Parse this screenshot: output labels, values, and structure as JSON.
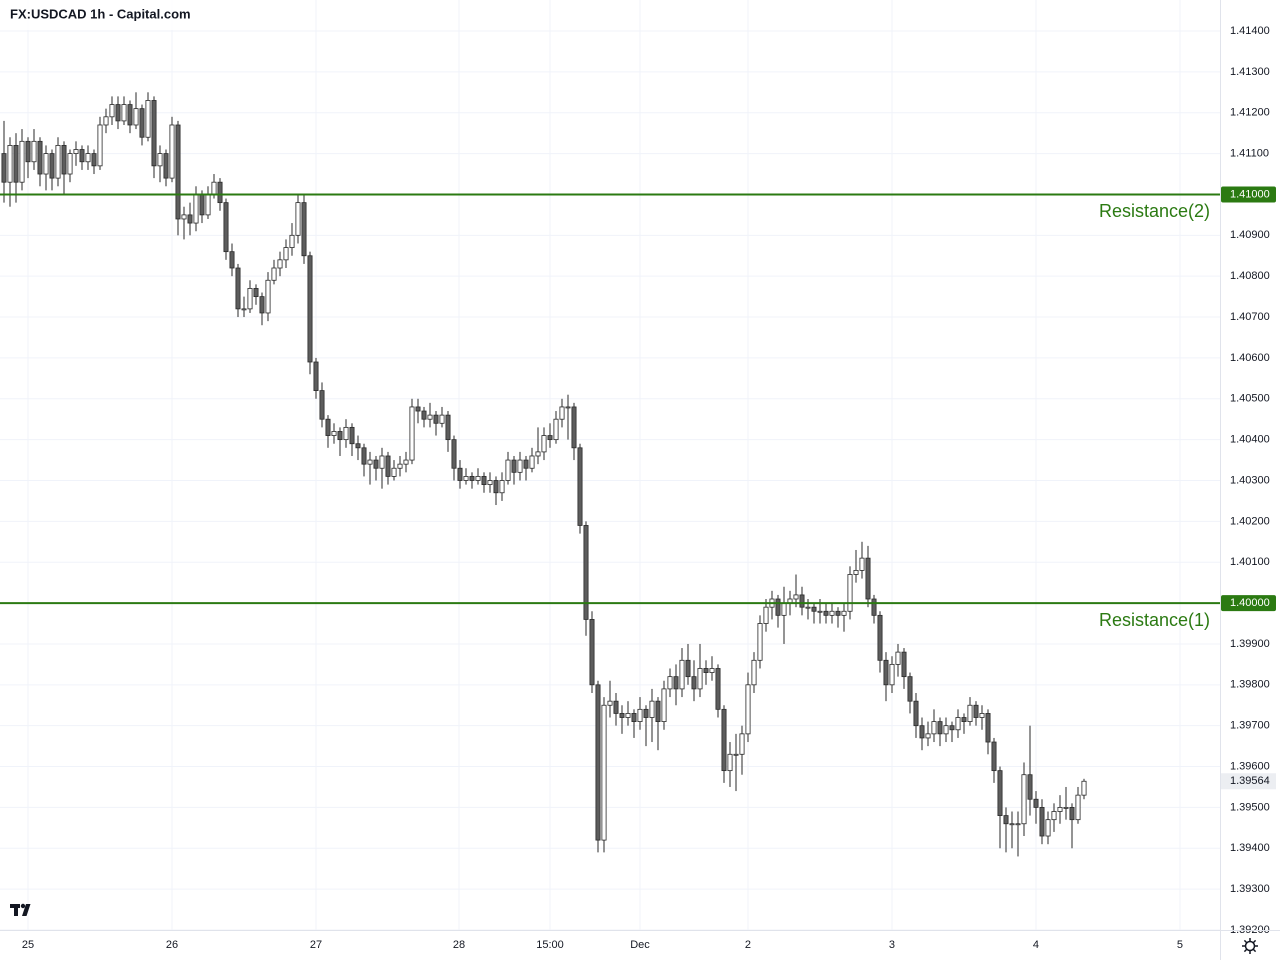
{
  "chart_data": {
    "type": "candlestick",
    "title": "FX:USDCAD 1h - Capital.com",
    "up_color": "#ffffff",
    "down_color": "#5d5d5d",
    "wick_color": "#2a2a2a",
    "level_color": "#2b7a12",
    "grid": true,
    "ylim": [
      1.392,
      1.414
    ],
    "yticks": [
      {
        "value": 1.392,
        "label": "1.39200"
      },
      {
        "value": 1.393,
        "label": "1.39300"
      },
      {
        "value": 1.394,
        "label": "1.39400"
      },
      {
        "value": 1.395,
        "label": "1.39500"
      },
      {
        "value": 1.396,
        "label": "1.39600"
      },
      {
        "value": 1.397,
        "label": "1.39700"
      },
      {
        "value": 1.398,
        "label": "1.39800"
      },
      {
        "value": 1.399,
        "label": "1.39900"
      },
      {
        "value": 1.4,
        "label": "1.40000"
      },
      {
        "value": 1.401,
        "label": "1.40100"
      },
      {
        "value": 1.402,
        "label": "1.40200"
      },
      {
        "value": 1.403,
        "label": "1.40300"
      },
      {
        "value": 1.404,
        "label": "1.40400"
      },
      {
        "value": 1.405,
        "label": "1.40500"
      },
      {
        "value": 1.406,
        "label": "1.40600"
      },
      {
        "value": 1.407,
        "label": "1.40700"
      },
      {
        "value": 1.408,
        "label": "1.40800"
      },
      {
        "value": 1.409,
        "label": "1.40900"
      },
      {
        "value": 1.41,
        "label": "1.41000"
      },
      {
        "value": 1.411,
        "label": "1.41100"
      },
      {
        "value": 1.412,
        "label": "1.41200"
      },
      {
        "value": 1.413,
        "label": "1.41300"
      },
      {
        "value": 1.414,
        "label": "1.41400"
      }
    ],
    "xlim": [
      -0.667,
      202.667
    ],
    "xticks": [
      {
        "value": 4,
        "label": "25"
      },
      {
        "value": 28,
        "label": "26"
      },
      {
        "value": 52,
        "label": "27"
      },
      {
        "value": 75.83,
        "label": "28"
      },
      {
        "value": 91,
        "label": "15:00"
      },
      {
        "value": 106,
        "label": "Dec"
      },
      {
        "value": 124,
        "label": "2"
      },
      {
        "value": 148,
        "label": "3"
      },
      {
        "value": 172,
        "label": "4"
      },
      {
        "value": 196,
        "label": "5"
      }
    ],
    "levels": [
      {
        "name": "Resistance(2)",
        "value": 1.41,
        "value_label": "1.41000"
      },
      {
        "name": "Resistance(1)",
        "value": 1.4,
        "value_label": "1.40000"
      }
    ],
    "ohlc": [
      [
        1.411,
        1.4118,
        1.4098,
        1.4103
      ],
      [
        1.4103,
        1.4114,
        1.4097,
        1.4112
      ],
      [
        1.4112,
        1.4115,
        1.4098,
        1.4103
      ],
      [
        1.4103,
        1.4116,
        1.4101,
        1.4113
      ],
      [
        1.4113,
        1.4114,
        1.4104,
        1.4108
      ],
      [
        1.4108,
        1.4116,
        1.4106,
        1.4113
      ],
      [
        1.4113,
        1.4114,
        1.4102,
        1.4105
      ],
      [
        1.4105,
        1.4112,
        1.4101,
        1.411
      ],
      [
        1.411,
        1.4111,
        1.4101,
        1.4104
      ],
      [
        1.4104,
        1.4114,
        1.4102,
        1.4112
      ],
      [
        1.4112,
        1.4113,
        1.41,
        1.4105
      ],
      [
        1.4105,
        1.4111,
        1.4103,
        1.411
      ],
      [
        1.411,
        1.4113,
        1.4107,
        1.4111
      ],
      [
        1.4111,
        1.4112,
        1.4106,
        1.4108
      ],
      [
        1.4108,
        1.4112,
        1.4106,
        1.411
      ],
      [
        1.411,
        1.4111,
        1.4105,
        1.4107
      ],
      [
        1.4107,
        1.4119,
        1.4106,
        1.4117
      ],
      [
        1.4117,
        1.4121,
        1.4115,
        1.4119
      ],
      [
        1.4119,
        1.4124,
        1.4117,
        1.4122
      ],
      [
        1.4122,
        1.4124,
        1.4116,
        1.4118
      ],
      [
        1.4118,
        1.4124,
        1.4117,
        1.4122
      ],
      [
        1.4122,
        1.4123,
        1.4115,
        1.4117
      ],
      [
        1.4117,
        1.4125,
        1.4116,
        1.4121
      ],
      [
        1.4121,
        1.4122,
        1.4112,
        1.4114
      ],
      [
        1.4114,
        1.4125,
        1.4113,
        1.4123
      ],
      [
        1.4123,
        1.4124,
        1.4104,
        1.4107
      ],
      [
        1.4107,
        1.4112,
        1.4103,
        1.411
      ],
      [
        1.411,
        1.4111,
        1.4102,
        1.4104
      ],
      [
        1.4104,
        1.4119,
        1.4103,
        1.4117
      ],
      [
        1.4117,
        1.4118,
        1.409,
        1.4094
      ],
      [
        1.4094,
        1.4097,
        1.4089,
        1.4095
      ],
      [
        1.4095,
        1.4098,
        1.409,
        1.4093
      ],
      [
        1.4093,
        1.4102,
        1.4091,
        1.41
      ],
      [
        1.41,
        1.4101,
        1.4093,
        1.4095
      ],
      [
        1.4095,
        1.4102,
        1.4094,
        1.41
      ],
      [
        1.41,
        1.4105,
        1.4099,
        1.4103
      ],
      [
        1.4103,
        1.4104,
        1.4096,
        1.4098
      ],
      [
        1.4098,
        1.4099,
        1.4084,
        1.4086
      ],
      [
        1.4086,
        1.4088,
        1.408,
        1.4082
      ],
      [
        1.4082,
        1.4083,
        1.407,
        1.4072
      ],
      [
        1.4072,
        1.4075,
        1.407,
        1.4072
      ],
      [
        1.4072,
        1.4079,
        1.4071,
        1.4077
      ],
      [
        1.4077,
        1.4078,
        1.4073,
        1.4075
      ],
      [
        1.4075,
        1.4076,
        1.4068,
        1.4071
      ],
      [
        1.4071,
        1.4081,
        1.4069,
        1.4079
      ],
      [
        1.4079,
        1.4084,
        1.4078,
        1.4082
      ],
      [
        1.4082,
        1.4086,
        1.408,
        1.4084
      ],
      [
        1.4084,
        1.4089,
        1.4082,
        1.4087
      ],
      [
        1.4087,
        1.4093,
        1.4085,
        1.409
      ],
      [
        1.409,
        1.41,
        1.4088,
        1.4098
      ],
      [
        1.4098,
        1.41,
        1.4083,
        1.4085
      ],
      [
        1.4085,
        1.4086,
        1.4056,
        1.4059
      ],
      [
        1.4059,
        1.406,
        1.405,
        1.4052
      ],
      [
        1.4052,
        1.4054,
        1.4043,
        1.4045
      ],
      [
        1.4045,
        1.4046,
        1.4038,
        1.4041
      ],
      [
        1.4041,
        1.4044,
        1.4039,
        1.4042
      ],
      [
        1.4042,
        1.4043,
        1.4036,
        1.404
      ],
      [
        1.404,
        1.4045,
        1.4038,
        1.4043
      ],
      [
        1.4043,
        1.4044,
        1.4036,
        1.4039
      ],
      [
        1.4039,
        1.4041,
        1.4035,
        1.4038
      ],
      [
        1.4038,
        1.4039,
        1.4031,
        1.4034
      ],
      [
        1.4034,
        1.4037,
        1.4029,
        1.4035
      ],
      [
        1.4035,
        1.4036,
        1.403,
        1.4033
      ],
      [
        1.4033,
        1.4038,
        1.4028,
        1.4036
      ],
      [
        1.4036,
        1.4037,
        1.4029,
        1.4031
      ],
      [
        1.4031,
        1.4035,
        1.403,
        1.4033
      ],
      [
        1.4033,
        1.4036,
        1.4031,
        1.4034
      ],
      [
        1.4034,
        1.4037,
        1.4032,
        1.4035
      ],
      [
        1.4035,
        1.405,
        1.4034,
        1.4048
      ],
      [
        1.4048,
        1.405,
        1.4044,
        1.4047
      ],
      [
        1.4047,
        1.4048,
        1.4043,
        1.4045
      ],
      [
        1.4045,
        1.4049,
        1.4043,
        1.4046
      ],
      [
        1.4046,
        1.4047,
        1.4041,
        1.4044
      ],
      [
        1.4044,
        1.4048,
        1.4043,
        1.4046
      ],
      [
        1.4046,
        1.4047,
        1.4037,
        1.404
      ],
      [
        1.404,
        1.4041,
        1.403,
        1.4033
      ],
      [
        1.4033,
        1.4035,
        1.4028,
        1.403
      ],
      [
        1.403,
        1.4033,
        1.4029,
        1.4031
      ],
      [
        1.4031,
        1.4032,
        1.4028,
        1.403
      ],
      [
        1.403,
        1.4033,
        1.4029,
        1.4031
      ],
      [
        1.4031,
        1.4032,
        1.4027,
        1.4029
      ],
      [
        1.4029,
        1.4032,
        1.4027,
        1.403
      ],
      [
        1.403,
        1.4031,
        1.4024,
        1.4027
      ],
      [
        1.4027,
        1.4032,
        1.4025,
        1.403
      ],
      [
        1.403,
        1.4037,
        1.4029,
        1.4035
      ],
      [
        1.4035,
        1.4036,
        1.4029,
        1.4032
      ],
      [
        1.4032,
        1.4037,
        1.403,
        1.4035
      ],
      [
        1.4035,
        1.4036,
        1.403,
        1.4033
      ],
      [
        1.4033,
        1.4038,
        1.4032,
        1.4036
      ],
      [
        1.4036,
        1.4043,
        1.4034,
        1.4037
      ],
      [
        1.4037,
        1.4043,
        1.4035,
        1.4041
      ],
      [
        1.4041,
        1.4044,
        1.4038,
        1.404
      ],
      [
        1.404,
        1.4047,
        1.4039,
        1.4045
      ],
      [
        1.4045,
        1.405,
        1.4043,
        1.4048
      ],
      [
        1.4048,
        1.4051,
        1.404,
        1.4048
      ],
      [
        1.4048,
        1.4049,
        1.4035,
        1.4038
      ],
      [
        1.4038,
        1.4039,
        1.4017,
        1.4019
      ],
      [
        1.4019,
        1.402,
        1.3992,
        1.3996
      ],
      [
        1.3996,
        1.3998,
        1.3978,
        1.398
      ],
      [
        1.398,
        1.3981,
        1.3939,
        1.3942
      ],
      [
        1.3942,
        1.3977,
        1.3939,
        1.3975
      ],
      [
        1.3975,
        1.3981,
        1.3972,
        1.3976
      ],
      [
        1.3976,
        1.3978,
        1.397,
        1.3973
      ],
      [
        1.3973,
        1.3975,
        1.3968,
        1.3972
      ],
      [
        1.3972,
        1.3976,
        1.397,
        1.3973
      ],
      [
        1.3973,
        1.3974,
        1.3967,
        1.3971
      ],
      [
        1.3971,
        1.3977,
        1.3969,
        1.3974
      ],
      [
        1.3974,
        1.3975,
        1.3965,
        1.3972
      ],
      [
        1.3972,
        1.3979,
        1.3966,
        1.3976
      ],
      [
        1.3976,
        1.3977,
        1.3964,
        1.3971
      ],
      [
        1.3971,
        1.3981,
        1.3969,
        1.3979
      ],
      [
        1.3979,
        1.3984,
        1.3977,
        1.3982
      ],
      [
        1.3982,
        1.3985,
        1.3975,
        1.3979
      ],
      [
        1.3979,
        1.3989,
        1.3977,
        1.3986
      ],
      [
        1.3986,
        1.399,
        1.398,
        1.3982
      ],
      [
        1.3982,
        1.3986,
        1.3976,
        1.3979
      ],
      [
        1.3979,
        1.399,
        1.3977,
        1.3984
      ],
      [
        1.3984,
        1.3986,
        1.398,
        1.3983
      ],
      [
        1.3983,
        1.3987,
        1.3981,
        1.3984
      ],
      [
        1.3984,
        1.3985,
        1.3972,
        1.3974
      ],
      [
        1.3974,
        1.3975,
        1.3956,
        1.3959
      ],
      [
        1.3959,
        1.3966,
        1.3955,
        1.3963
      ],
      [
        1.3963,
        1.3968,
        1.3954,
        1.3963
      ],
      [
        1.3963,
        1.397,
        1.3958,
        1.3968
      ],
      [
        1.3968,
        1.3983,
        1.3966,
        1.398
      ],
      [
        1.398,
        1.3988,
        1.3978,
        1.3986
      ],
      [
        1.3986,
        1.3997,
        1.3984,
        1.3995
      ],
      [
        1.3995,
        1.4001,
        1.3993,
        1.3999
      ],
      [
        1.3999,
        1.4003,
        1.3996,
        1.4001
      ],
      [
        1.4001,
        1.4002,
        1.3994,
        1.3997
      ],
      [
        1.3997,
        1.4004,
        1.399,
        1.4
      ],
      [
        1.4,
        1.4003,
        1.3997,
        1.4001
      ],
      [
        1.4001,
        1.4007,
        1.3999,
        1.4002
      ],
      [
        1.4002,
        1.4004,
        1.3997,
        1.3999
      ],
      [
        1.3999,
        1.4001,
        1.3996,
        1.3999
      ],
      [
        1.3999,
        1.4,
        1.3995,
        1.3998
      ],
      [
        1.3998,
        1.4001,
        1.3995,
        1.3998
      ],
      [
        1.3998,
        1.4,
        1.3995,
        1.3997
      ],
      [
        1.3997,
        1.4,
        1.3995,
        1.3998
      ],
      [
        1.3998,
        1.3999,
        1.3994,
        1.3997
      ],
      [
        1.3997,
        1.4,
        1.3993,
        1.3998
      ],
      [
        1.3998,
        1.4009,
        1.3996,
        1.4007
      ],
      [
        1.4007,
        1.4013,
        1.4005,
        1.4008
      ],
      [
        1.4008,
        1.4015,
        1.4006,
        1.4011
      ],
      [
        1.4011,
        1.4014,
        1.3999,
        1.4001
      ],
      [
        1.4001,
        1.4002,
        1.3995,
        1.3997
      ],
      [
        1.3997,
        1.3998,
        1.3983,
        1.3986
      ],
      [
        1.3986,
        1.3988,
        1.3976,
        1.398
      ],
      [
        1.398,
        1.3987,
        1.3978,
        1.3985
      ],
      [
        1.3985,
        1.399,
        1.3982,
        1.3988
      ],
      [
        1.3988,
        1.3989,
        1.3979,
        1.3982
      ],
      [
        1.3982,
        1.3983,
        1.3973,
        1.3976
      ],
      [
        1.3976,
        1.3978,
        1.3967,
        1.397
      ],
      [
        1.397,
        1.3972,
        1.3964,
        1.3967
      ],
      [
        1.3967,
        1.3971,
        1.3965,
        1.3968
      ],
      [
        1.3968,
        1.3974,
        1.3966,
        1.3971
      ],
      [
        1.3971,
        1.3972,
        1.3965,
        1.3968
      ],
      [
        1.3968,
        1.3972,
        1.3966,
        1.397
      ],
      [
        1.397,
        1.3971,
        1.3966,
        1.3969
      ],
      [
        1.3969,
        1.3974,
        1.3967,
        1.3972
      ],
      [
        1.3972,
        1.3973,
        1.3968,
        1.3971
      ],
      [
        1.3971,
        1.3977,
        1.397,
        1.3975
      ],
      [
        1.3975,
        1.3976,
        1.397,
        1.3972
      ],
      [
        1.3972,
        1.3975,
        1.3969,
        1.3973
      ],
      [
        1.3973,
        1.3974,
        1.3963,
        1.3966
      ],
      [
        1.3966,
        1.3967,
        1.3956,
        1.3959
      ],
      [
        1.3959,
        1.396,
        1.394,
        1.3948
      ],
      [
        1.3948,
        1.395,
        1.3939,
        1.3946
      ],
      [
        1.3946,
        1.3949,
        1.394,
        1.3946
      ],
      [
        1.3946,
        1.3949,
        1.3938,
        1.3946
      ],
      [
        1.3946,
        1.3961,
        1.3943,
        1.3958
      ],
      [
        1.3958,
        1.397,
        1.3948,
        1.3952
      ],
      [
        1.3952,
        1.3954,
        1.3946,
        1.395
      ],
      [
        1.395,
        1.3952,
        1.3941,
        1.3943
      ],
      [
        1.3943,
        1.3949,
        1.3941,
        1.3947
      ],
      [
        1.3947,
        1.3951,
        1.3944,
        1.3949
      ],
      [
        1.3949,
        1.3953,
        1.3946,
        1.395
      ],
      [
        1.395,
        1.3955,
        1.3947,
        1.395
      ],
      [
        1.395,
        1.3951,
        1.394,
        1.3947
      ],
      [
        1.3947,
        1.3955,
        1.3946,
        1.3953
      ],
      [
        1.3953,
        1.3957,
        1.3952,
        1.39564
      ]
    ]
  }
}
